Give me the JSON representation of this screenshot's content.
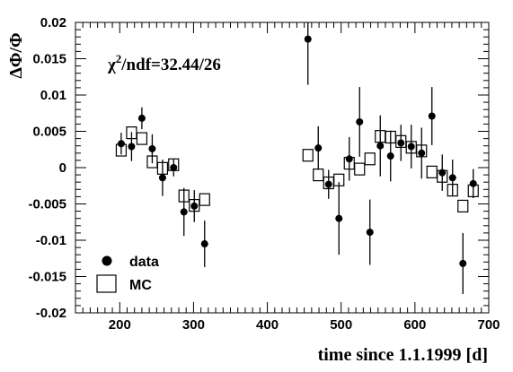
{
  "chart_data": {
    "type": "scatter",
    "xlabel": "time since 1.1.1999 [d]",
    "ylabel": "ΔΦ/Φ",
    "xlim": [
      140,
      700
    ],
    "ylim": [
      -0.02,
      0.02
    ],
    "x_ticks": [
      200,
      300,
      400,
      500,
      600,
      700
    ],
    "y_ticks": [
      -0.02,
      -0.015,
      -0.01,
      -0.005,
      0,
      0.005,
      0.01,
      0.015,
      0.02
    ],
    "x_tick_labels": [
      "200",
      "300",
      "400",
      "500",
      "600",
      "700"
    ],
    "y_tick_labels": [
      "-0.02",
      "-0.015",
      "-0.01",
      "-0.005",
      "0",
      "0.005",
      "0.01",
      "0.015",
      "0.02"
    ],
    "annotation": {
      "prefix": "χ",
      "sup": "2",
      "suffix": "/ndf=32.44/26"
    },
    "legend_position": "bottom-left",
    "series": [
      {
        "name": "data",
        "marker": "filled-circle",
        "points": [
          {
            "x": 202,
            "y": 0.0033,
            "err": 0.0015
          },
          {
            "x": 216,
            "y": 0.0029,
            "err": 0.002
          },
          {
            "x": 230,
            "y": 0.0068,
            "err": 0.0015
          },
          {
            "x": 244,
            "y": 0.0026,
            "err": 0.002
          },
          {
            "x": 258,
            "y": -0.0014,
            "err": 0.0025
          },
          {
            "x": 273,
            "y": 0.0,
            "err": 0.0012
          },
          {
            "x": 287,
            "y": -0.0061,
            "err": 0.0033
          },
          {
            "x": 301,
            "y": -0.0053,
            "err": 0.0022
          },
          {
            "x": 315,
            "y": -0.0105,
            "err": 0.0032
          },
          {
            "x": 455,
            "y": 0.0177,
            "err": 0.0063
          },
          {
            "x": 469,
            "y": 0.0027,
            "err": 0.003
          },
          {
            "x": 483,
            "y": -0.0023,
            "err": 0.002
          },
          {
            "x": 497,
            "y": -0.007,
            "err": 0.005
          },
          {
            "x": 511,
            "y": 0.0012,
            "err": 0.003
          },
          {
            "x": 525,
            "y": 0.0063,
            "err": 0.0048
          },
          {
            "x": 539,
            "y": -0.0089,
            "err": 0.0045
          },
          {
            "x": 553,
            "y": 0.003,
            "err": 0.0042
          },
          {
            "x": 567,
            "y": 0.0016,
            "err": 0.0035
          },
          {
            "x": 581,
            "y": 0.0034,
            "err": 0.0025
          },
          {
            "x": 595,
            "y": 0.0029,
            "err": 0.003
          },
          {
            "x": 609,
            "y": 0.002,
            "err": 0.0035
          },
          {
            "x": 623,
            "y": 0.0071,
            "err": 0.004
          },
          {
            "x": 637,
            "y": -0.0007,
            "err": 0.0025
          },
          {
            "x": 651,
            "y": -0.0014,
            "err": 0.0025
          },
          {
            "x": 665,
            "y": -0.0132,
            "err": 0.0042
          },
          {
            "x": 679,
            "y": -0.0022,
            "err": 0.002
          }
        ]
      },
      {
        "name": "MC",
        "marker": "open-square",
        "points": [
          {
            "x": 202,
            "y": 0.0024
          },
          {
            "x": 216,
            "y": 0.0048
          },
          {
            "x": 230,
            "y": 0.004
          },
          {
            "x": 244,
            "y": 0.0008
          },
          {
            "x": 258,
            "y": -0.0001
          },
          {
            "x": 273,
            "y": 0.0004
          },
          {
            "x": 287,
            "y": -0.0039
          },
          {
            "x": 301,
            "y": -0.0052
          },
          {
            "x": 315,
            "y": -0.0044
          },
          {
            "x": 455,
            "y": 0.0017
          },
          {
            "x": 469,
            "y": -0.001
          },
          {
            "x": 483,
            "y": -0.0021
          },
          {
            "x": 497,
            "y": -0.0017
          },
          {
            "x": 511,
            "y": 0.0006
          },
          {
            "x": 525,
            "y": -0.0002
          },
          {
            "x": 539,
            "y": 0.0012
          },
          {
            "x": 553,
            "y": 0.0043
          },
          {
            "x": 567,
            "y": 0.0042
          },
          {
            "x": 581,
            "y": 0.0036
          },
          {
            "x": 595,
            "y": 0.0028
          },
          {
            "x": 609,
            "y": 0.0023
          },
          {
            "x": 623,
            "y": -0.0006
          },
          {
            "x": 637,
            "y": -0.0012
          },
          {
            "x": 651,
            "y": -0.0031
          },
          {
            "x": 665,
            "y": -0.0053
          },
          {
            "x": 679,
            "y": -0.0032
          }
        ]
      }
    ]
  }
}
